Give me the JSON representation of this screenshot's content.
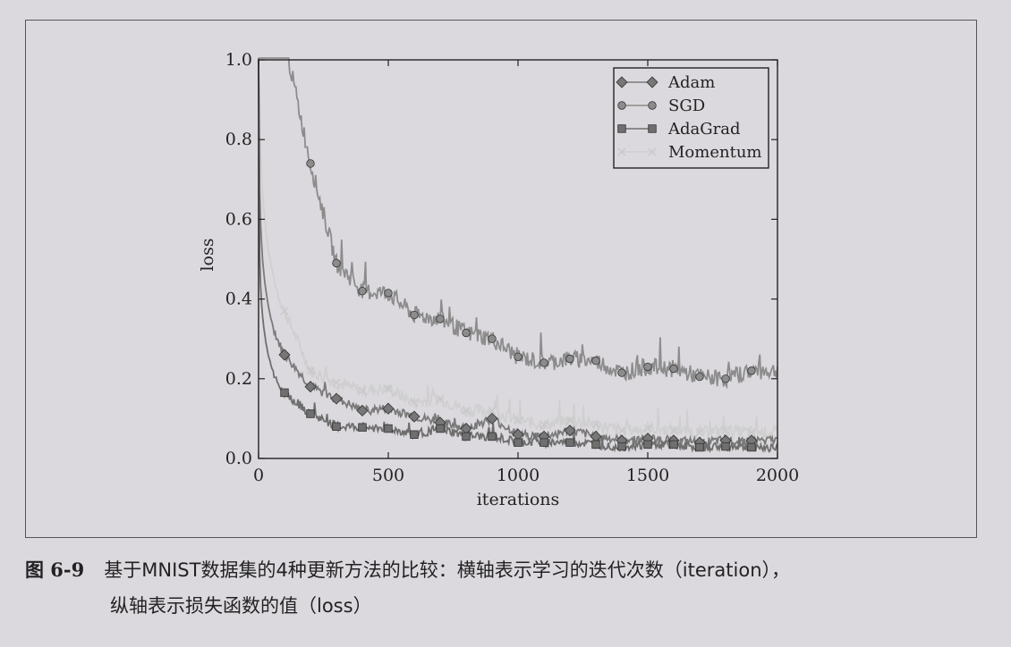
{
  "chart_data": {
    "type": "line",
    "title": "",
    "xlabel": "iterations",
    "ylabel": "loss",
    "xlim": [
      0,
      2000
    ],
    "ylim": [
      0,
      1.0
    ],
    "xticks": [
      0,
      500,
      1000,
      1500,
      2000
    ],
    "yticks": [
      0.0,
      0.2,
      0.4,
      0.6,
      0.8,
      1.0
    ],
    "xtick_labels": [
      "0",
      "500",
      "1000",
      "1500",
      "2000"
    ],
    "ytick_labels": [
      "0.0",
      "0.2",
      "0.4",
      "0.6",
      "0.8",
      "1.0"
    ],
    "legend_position": "top-right",
    "grid": false,
    "series": [
      {
        "name": "Adam",
        "marker": "diamond",
        "color": "#7a7a7a",
        "x": [
          100,
          200,
          300,
          400,
          500,
          600,
          700,
          800,
          900,
          1000,
          1100,
          1200,
          1300,
          1400,
          1500,
          1600,
          1700,
          1800,
          1900
        ],
        "values": [
          0.26,
          0.18,
          0.15,
          0.12,
          0.125,
          0.105,
          0.09,
          0.075,
          0.1,
          0.06,
          0.055,
          0.07,
          0.055,
          0.045,
          0.05,
          0.045,
          0.04,
          0.045,
          0.045
        ]
      },
      {
        "name": "SGD",
        "marker": "circle",
        "color": "#8c8c8c",
        "x": [
          100,
          200,
          300,
          400,
          500,
          600,
          700,
          800,
          900,
          1000,
          1100,
          1200,
          1300,
          1400,
          1500,
          1600,
          1700,
          1800,
          1900
        ],
        "values": [
          1.05,
          0.74,
          0.49,
          0.42,
          0.415,
          0.36,
          0.35,
          0.315,
          0.3,
          0.255,
          0.24,
          0.25,
          0.245,
          0.215,
          0.23,
          0.225,
          0.205,
          0.2,
          0.22
        ]
      },
      {
        "name": "AdaGrad",
        "marker": "square",
        "color": "#6e6e6e",
        "x": [
          100,
          200,
          300,
          400,
          500,
          600,
          700,
          800,
          900,
          1000,
          1100,
          1200,
          1300,
          1400,
          1500,
          1600,
          1700,
          1800,
          1900
        ],
        "values": [
          0.165,
          0.112,
          0.08,
          0.078,
          0.075,
          0.06,
          0.075,
          0.055,
          0.055,
          0.04,
          0.04,
          0.04,
          0.035,
          0.03,
          0.035,
          0.035,
          0.028,
          0.03,
          0.028
        ]
      },
      {
        "name": "Momentum",
        "marker": "x",
        "color": "#cfcfcf",
        "x": [
          100,
          200,
          300,
          400,
          500,
          600,
          700,
          800,
          900,
          1000,
          1100,
          1200,
          1300,
          1400,
          1500,
          1600,
          1700,
          1800,
          1900
        ],
        "values": [
          0.37,
          0.22,
          0.19,
          0.17,
          0.175,
          0.14,
          0.15,
          0.12,
          0.12,
          0.095,
          0.085,
          0.095,
          0.085,
          0.07,
          0.075,
          0.07,
          0.065,
          0.07,
          0.065
        ]
      }
    ]
  },
  "caption": {
    "figure_number": "图 6-9",
    "line1": "基于MNIST数据集的4种更新方法的比较：横轴表示学习的迭代次数（iteration），",
    "line2": "纵轴表示损失函数的值（loss）"
  }
}
